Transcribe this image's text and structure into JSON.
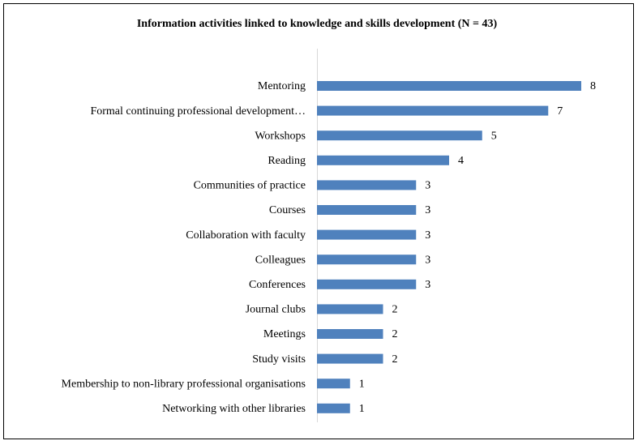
{
  "chart_data": {
    "type": "bar",
    "orientation": "horizontal",
    "title": "Information activities linked to knowledge and skills development (N = 43)",
    "categories": [
      "Mentoring",
      "Formal continuing professional development…",
      "Workshops",
      "Reading",
      "Communities of practice",
      "Courses",
      "Collaboration with faculty",
      "Colleagues",
      "Conferences",
      "Journal clubs",
      "Meetings",
      "Study visits",
      "Membership to non-library professional organisations",
      "Networking with other libraries"
    ],
    "values": [
      8,
      7,
      5,
      4,
      3,
      3,
      3,
      3,
      3,
      2,
      2,
      2,
      1,
      1
    ],
    "color": "#4f81bd",
    "xlim": [
      0,
      8
    ],
    "grid": false
  }
}
